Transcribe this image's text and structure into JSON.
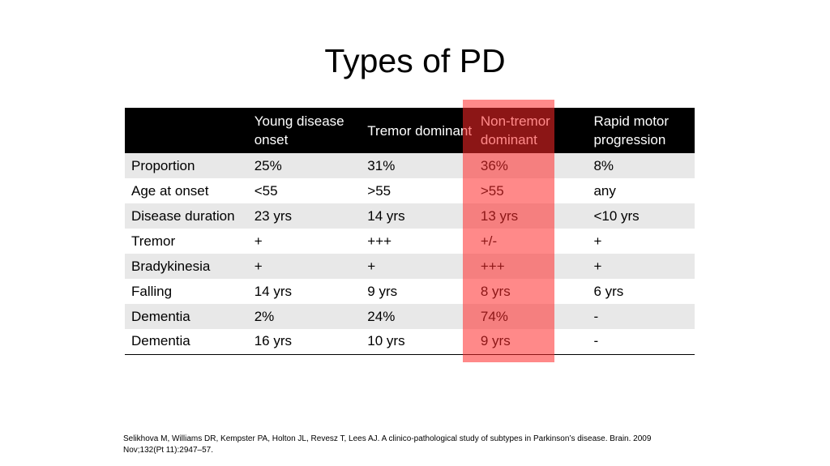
{
  "slide": {
    "title": "Types of PD"
  },
  "table": {
    "headers": [
      "",
      "Young disease onset",
      "Tremor dominant",
      "Non-tremor dominant",
      "Rapid motor progression"
    ],
    "rows": [
      [
        "Proportion",
        "25%",
        "31%",
        "36%",
        "8%"
      ],
      [
        "Age at onset",
        "<55",
        ">55",
        ">55",
        "any"
      ],
      [
        "Disease duration",
        "23 yrs",
        "14 yrs",
        "13 yrs",
        "<10 yrs"
      ],
      [
        "Tremor",
        "+",
        "+++",
        "+/-",
        "+"
      ],
      [
        "Bradykinesia",
        "+",
        "+",
        "+++",
        "+"
      ],
      [
        "Falling",
        "14 yrs",
        "9 yrs",
        "8 yrs",
        "6 yrs"
      ],
      [
        "Dementia",
        "2%",
        "24%",
        "74%",
        "-"
      ],
      [
        "Dementia",
        "16 yrs",
        "10 yrs",
        "9 yrs",
        "-"
      ]
    ],
    "highlighted_column": "Non-tremor dominant",
    "highlight_color": "#ff2828"
  },
  "citation": "Selikhova M, Williams DR, Kempster PA, Holton JL, Revesz T, Lees AJ. A clinico-pathological study of subtypes in Parkinson’s disease. Brain. 2009 Nov;132(Pt 11):2947–57."
}
